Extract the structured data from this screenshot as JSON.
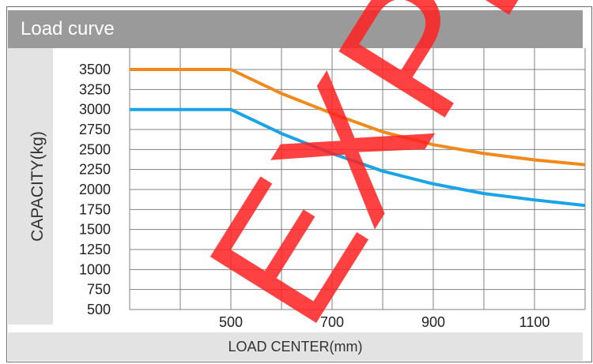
{
  "header": {
    "title": "Load curve"
  },
  "watermark": {
    "text": "EXPL",
    "color": "#ff2020"
  },
  "colors": {
    "series_orange": "#f08a1c",
    "series_blue": "#1aa3e6",
    "title_bg": "#9a9a9a",
    "panel_bg": "#e3e3e3",
    "grid": "#808080"
  },
  "chart_data": {
    "type": "line",
    "title": "Load curve",
    "xlabel": "LOAD CENTER(mm)",
    "ylabel": "CAPACITY(kg)",
    "xlim": [
      300,
      1200
    ],
    "ylim": [
      500,
      3500
    ],
    "x_ticks": [
      500,
      700,
      900,
      1100
    ],
    "x_tick_labels": [
      "500",
      "700",
      "900",
      "1100"
    ],
    "x_grid": [
      400,
      500,
      600,
      700,
      800,
      900,
      1000,
      1100,
      1200
    ],
    "y_ticks": [
      500,
      750,
      1000,
      1250,
      1500,
      1750,
      2000,
      2250,
      2500,
      2750,
      3000,
      3250,
      3500
    ],
    "y_tick_labels": [
      "500",
      "750",
      "1000",
      "1250",
      "1500",
      "1750",
      "2000",
      "2250",
      "2500",
      "2750",
      "3000",
      "3250",
      "3500"
    ],
    "grid": true,
    "legend": "none",
    "series": [
      {
        "color": "#f08a1c",
        "x": [
          300,
          500,
          600,
          700,
          800,
          900,
          1000,
          1100,
          1200
        ],
        "y": [
          3500,
          3500,
          3200,
          2950,
          2720,
          2560,
          2450,
          2370,
          2310
        ]
      },
      {
        "color": "#1aa3e6",
        "x": [
          300,
          500,
          600,
          700,
          800,
          900,
          1000,
          1100,
          1200
        ],
        "y": [
          3000,
          3000,
          2700,
          2450,
          2230,
          2070,
          1950,
          1870,
          1800
        ]
      }
    ]
  }
}
